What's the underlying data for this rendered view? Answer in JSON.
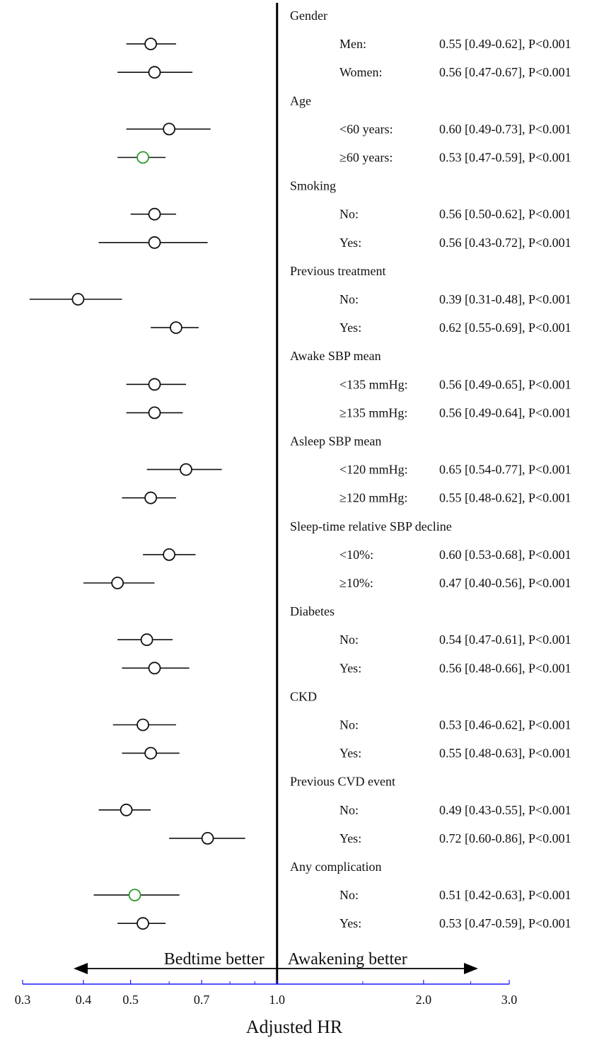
{
  "chart_data": {
    "type": "forest",
    "xlabel": "Adjusted HR",
    "x_scale": "log",
    "xlim": [
      0.3,
      3.0
    ],
    "x_ticks": [
      0.3,
      0.4,
      0.5,
      0.7,
      1.0,
      2.0,
      3.0
    ],
    "x_tick_labels": [
      "0.3",
      "0.4",
      "0.5",
      "0.7",
      "1.0",
      "2.0",
      "3.0"
    ],
    "reference_line": 1.0,
    "axis_color": "#1a1aff",
    "direction_left": "Bedtime better",
    "direction_right": "Awakening better",
    "groups": [
      {
        "label": "Gender",
        "rows": [
          {
            "label": "Men:",
            "hr": 0.55,
            "lo": 0.49,
            "hi": 0.62,
            "stat": "0.55 [0.49-0.62], P<0.001",
            "color": "#111111"
          },
          {
            "label": "Women:",
            "hr": 0.56,
            "lo": 0.47,
            "hi": 0.67,
            "stat": "0.56 [0.47-0.67], P<0.001",
            "color": "#111111"
          }
        ]
      },
      {
        "label": "Age",
        "rows": [
          {
            "label": "<60 years:",
            "hr": 0.6,
            "lo": 0.49,
            "hi": 0.73,
            "stat": "0.60 [0.49-0.73], P<0.001",
            "color": "#111111"
          },
          {
            "label": "≥60 years:",
            "hr": 0.53,
            "lo": 0.47,
            "hi": 0.59,
            "stat": "0.53 [0.47-0.59], P<0.001",
            "color": "#2a9a2a"
          }
        ]
      },
      {
        "label": "Smoking",
        "rows": [
          {
            "label": "No:",
            "hr": 0.56,
            "lo": 0.5,
            "hi": 0.62,
            "stat": "0.56 [0.50-0.62], P<0.001",
            "color": "#111111"
          },
          {
            "label": "Yes:",
            "hr": 0.56,
            "lo": 0.43,
            "hi": 0.72,
            "stat": "0.56 [0.43-0.72], P<0.001",
            "color": "#111111"
          }
        ]
      },
      {
        "label": "Previous treatment",
        "rows": [
          {
            "label": "No:",
            "hr": 0.39,
            "lo": 0.31,
            "hi": 0.48,
            "stat": "0.39 [0.31-0.48], P<0.001",
            "color": "#111111"
          },
          {
            "label": "Yes:",
            "hr": 0.62,
            "lo": 0.55,
            "hi": 0.69,
            "stat": "0.62 [0.55-0.69], P<0.001",
            "color": "#111111"
          }
        ]
      },
      {
        "label": "Awake SBP mean",
        "rows": [
          {
            "label": "<135 mmHg:",
            "hr": 0.56,
            "lo": 0.49,
            "hi": 0.65,
            "stat": "0.56 [0.49-0.65], P<0.001",
            "color": "#111111"
          },
          {
            "label": "≥135 mmHg:",
            "hr": 0.56,
            "lo": 0.49,
            "hi": 0.64,
            "stat": "0.56 [0.49-0.64], P<0.001",
            "color": "#111111"
          }
        ]
      },
      {
        "label": "Asleep SBP mean",
        "rows": [
          {
            "label": "<120 mmHg:",
            "hr": 0.65,
            "lo": 0.54,
            "hi": 0.77,
            "stat": "0.65 [0.54-0.77], P<0.001",
            "color": "#111111"
          },
          {
            "label": "≥120 mmHg:",
            "hr": 0.55,
            "lo": 0.48,
            "hi": 0.62,
            "stat": "0.55 [0.48-0.62], P<0.001",
            "color": "#111111"
          }
        ]
      },
      {
        "label": "Sleep-time relative SBP decline",
        "rows": [
          {
            "label": "<10%:",
            "hr": 0.6,
            "lo": 0.53,
            "hi": 0.68,
            "stat": "0.60 [0.53-0.68], P<0.001",
            "color": "#111111"
          },
          {
            "label": "≥10%:",
            "hr": 0.47,
            "lo": 0.4,
            "hi": 0.56,
            "stat": "0.47 [0.40-0.56], P<0.001",
            "color": "#111111"
          }
        ]
      },
      {
        "label": "Diabetes",
        "rows": [
          {
            "label": "No:",
            "hr": 0.54,
            "lo": 0.47,
            "hi": 0.61,
            "stat": "0.54 [0.47-0.61], P<0.001",
            "color": "#111111"
          },
          {
            "label": "Yes:",
            "hr": 0.56,
            "lo": 0.48,
            "hi": 0.66,
            "stat": "0.56 [0.48-0.66], P<0.001",
            "color": "#111111"
          }
        ]
      },
      {
        "label": "CKD",
        "rows": [
          {
            "label": "No:",
            "hr": 0.53,
            "lo": 0.46,
            "hi": 0.62,
            "stat": "0.53 [0.46-0.62], P<0.001",
            "color": "#111111"
          },
          {
            "label": "Yes:",
            "hr": 0.55,
            "lo": 0.48,
            "hi": 0.63,
            "stat": "0.55 [0.48-0.63], P<0.001",
            "color": "#111111"
          }
        ]
      },
      {
        "label": "Previous CVD event",
        "rows": [
          {
            "label": "No:",
            "hr": 0.49,
            "lo": 0.43,
            "hi": 0.55,
            "stat": "0.49 [0.43-0.55], P<0.001",
            "color": "#111111"
          },
          {
            "label": "Yes:",
            "hr": 0.72,
            "lo": 0.6,
            "hi": 0.86,
            "stat": "0.72 [0.60-0.86], P<0.001",
            "color": "#111111"
          }
        ]
      },
      {
        "label": "Any complication",
        "rows": [
          {
            "label": "No:",
            "hr": 0.51,
            "lo": 0.42,
            "hi": 0.63,
            "stat": "0.51 [0.42-0.63], P<0.001",
            "color": "#2a9a2a"
          },
          {
            "label": "Yes:",
            "hr": 0.53,
            "lo": 0.47,
            "hi": 0.59,
            "stat": "0.53 [0.47-0.59], P<0.001",
            "color": "#111111"
          }
        ]
      }
    ]
  }
}
